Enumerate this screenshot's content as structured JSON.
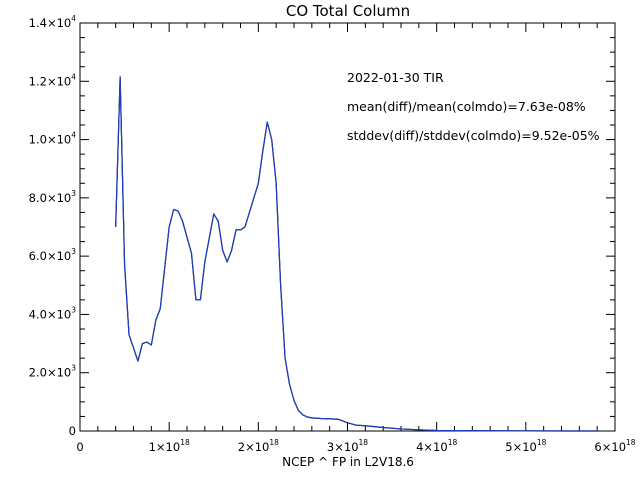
{
  "chart_data": {
    "type": "line",
    "title": "CO Total Column",
    "xlabel": "NCEP ^ FP in L2V18.6",
    "ylabel": "",
    "xlim": [
      0,
      6e+18
    ],
    "ylim": [
      0,
      14000
    ],
    "grid": false,
    "x_ticks": [
      {
        "value": 0,
        "mant": "0",
        "exp": ""
      },
      {
        "value": 1e+18,
        "mant": "1×10",
        "exp": "18"
      },
      {
        "value": 2e+18,
        "mant": "2×10",
        "exp": "18"
      },
      {
        "value": 3e+18,
        "mant": "3×10",
        "exp": "18"
      },
      {
        "value": 4e+18,
        "mant": "4×10",
        "exp": "18"
      },
      {
        "value": 5e+18,
        "mant": "5×10",
        "exp": "18"
      },
      {
        "value": 6e+18,
        "mant": "6×10",
        "exp": "18"
      }
    ],
    "y_ticks": [
      {
        "value": 0,
        "mant": "0",
        "exp": ""
      },
      {
        "value": 2000,
        "mant": "2.0×10",
        "exp": "3"
      },
      {
        "value": 4000,
        "mant": "4.0×10",
        "exp": "3"
      },
      {
        "value": 6000,
        "mant": "6.0×10",
        "exp": "3"
      },
      {
        "value": 8000,
        "mant": "8.0×10",
        "exp": "3"
      },
      {
        "value": 10000,
        "mant": "1.0×10",
        "exp": "4"
      },
      {
        "value": 12000,
        "mant": "1.2×10",
        "exp": "4"
      },
      {
        "value": 14000,
        "mant": "1.4×10",
        "exp": "4"
      }
    ],
    "annotations": [
      "2022-01-30 TIR",
      "mean(diff)/mean(colmdo)=7.63e-08%",
      "stddev(diff)/stddev(colmdo)=9.52e-05%"
    ],
    "series": [
      {
        "color": "#000000",
        "x": [
          4e+17,
          4.5e+17,
          5e+17,
          5.5e+17,
          6.5e+17,
          7e+17,
          7.5e+17,
          8e+17,
          8.5e+17,
          9e+17,
          1e+18,
          1.05e+18,
          1.1e+18,
          1.15e+18,
          1.25e+18,
          1.3e+18,
          1.35e+18,
          1.4e+18,
          1.5e+18,
          1.55e+18,
          1.6e+18,
          1.65e+18,
          1.7e+18,
          1.75e+18,
          1.8e+18,
          1.85e+18,
          1.9e+18,
          1.95e+18,
          2e+18,
          2.05e+18,
          2.1e+18,
          2.15e+18,
          2.2e+18,
          2.25e+18,
          2.3e+18,
          2.35e+18,
          2.4e+18,
          2.45e+18,
          2.5e+18,
          2.55e+18,
          2.6e+18,
          2.7e+18,
          2.8e+18,
          2.9e+18,
          3e+18,
          3.1e+18,
          3.2e+18,
          3.4e+18,
          3.6e+18,
          3.8e+18,
          4e+18,
          4.5e+18,
          5e+18,
          5.5e+18,
          5.8e+18
        ],
        "values": [
          7000,
          12150,
          5700,
          3300,
          2400,
          3000,
          3050,
          2950,
          3800,
          4200,
          7000,
          7600,
          7550,
          7200,
          6100,
          4500,
          4500,
          5800,
          7450,
          7200,
          6200,
          5800,
          6200,
          6900,
          6900,
          7000,
          7500,
          8000,
          8500,
          9600,
          10600,
          10000,
          8500,
          5000,
          2500,
          1600,
          1050,
          700,
          550,
          480,
          450,
          430,
          420,
          400,
          280,
          200,
          180,
          120,
          70,
          40,
          20,
          8,
          3,
          1,
          0
        ]
      },
      {
        "color": "#1f3fc4",
        "x": [
          4e+17,
          4.5e+17,
          5e+17,
          5.5e+17,
          6.5e+17,
          7e+17,
          7.5e+17,
          8e+17,
          8.5e+17,
          9e+17,
          1e+18,
          1.05e+18,
          1.1e+18,
          1.15e+18,
          1.25e+18,
          1.3e+18,
          1.35e+18,
          1.4e+18,
          1.5e+18,
          1.55e+18,
          1.6e+18,
          1.65e+18,
          1.7e+18,
          1.75e+18,
          1.8e+18,
          1.85e+18,
          1.9e+18,
          1.95e+18,
          2e+18,
          2.05e+18,
          2.1e+18,
          2.15e+18,
          2.2e+18,
          2.25e+18,
          2.3e+18,
          2.35e+18,
          2.4e+18,
          2.45e+18,
          2.5e+18,
          2.55e+18,
          2.6e+18,
          2.7e+18,
          2.8e+18,
          2.9e+18,
          3e+18,
          3.1e+18,
          3.2e+18,
          3.4e+18,
          3.6e+18,
          3.8e+18,
          4e+18,
          4.5e+18,
          5e+18,
          5.5e+18,
          5.8e+18
        ],
        "values": [
          7000,
          12150,
          5700,
          3300,
          2400,
          3000,
          3050,
          2950,
          3800,
          4200,
          7000,
          7600,
          7550,
          7200,
          6100,
          4500,
          4500,
          5800,
          7450,
          7200,
          6200,
          5800,
          6200,
          6900,
          6900,
          7000,
          7500,
          8000,
          8500,
          9600,
          10600,
          10000,
          8500,
          5000,
          2500,
          1600,
          1050,
          700,
          550,
          480,
          450,
          430,
          420,
          400,
          280,
          200,
          180,
          120,
          70,
          40,
          20,
          8,
          3,
          1,
          0
        ]
      }
    ]
  }
}
